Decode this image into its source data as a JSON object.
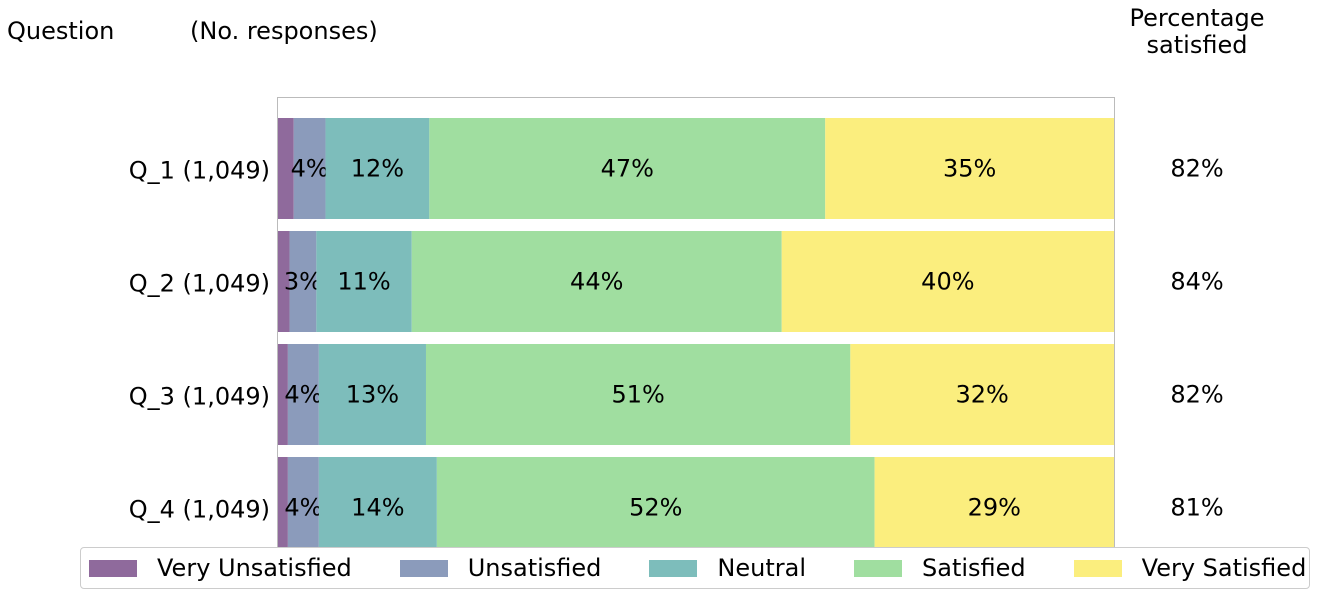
{
  "headers": {
    "question": "Question",
    "responses": "(No. responses)",
    "percentage": "Percentage satisfied"
  },
  "chart_data": {
    "type": "bar",
    "orientation": "horizontal",
    "stacked": true,
    "normalized": true,
    "xlim": [
      0,
      100
    ],
    "categories": [
      "Q_1 (1,049)",
      "Q_2 (1,049)",
      "Q_3 (1,049)",
      "Q_4 (1,049)"
    ],
    "series": [
      {
        "name": "Very Unsatisfied",
        "color": "#8f6a9c",
        "values": [
          2,
          1.5,
          1.3,
          1.3
        ],
        "labels": [
          "",
          "",
          "",
          ""
        ]
      },
      {
        "name": "Unsatisfied",
        "color": "#8b9bbb",
        "values": [
          3.8,
          3.2,
          3.7,
          3.7
        ],
        "labels": [
          "4%",
          "3%",
          "4%",
          "4%"
        ]
      },
      {
        "name": "Neutral",
        "color": "#7dbdbb",
        "values": [
          12.4,
          11.4,
          12.8,
          14.1
        ],
        "labels": [
          "12%",
          "11%",
          "13%",
          "14%"
        ]
      },
      {
        "name": "Satisfied",
        "color": "#a0dea0",
        "values": [
          47.3,
          44.2,
          50.7,
          52.3
        ],
        "labels": [
          "47%",
          "44%",
          "51%",
          "52%"
        ]
      },
      {
        "name": "Very Satisfied",
        "color": "#fbee7e",
        "values": [
          34.5,
          39.7,
          31.5,
          28.6
        ],
        "labels": [
          "35%",
          "40%",
          "32%",
          "29%"
        ]
      }
    ],
    "percentage_satisfied": [
      "82%",
      "84%",
      "82%",
      "81%"
    ],
    "legend_position": "bottom",
    "grid": false
  }
}
